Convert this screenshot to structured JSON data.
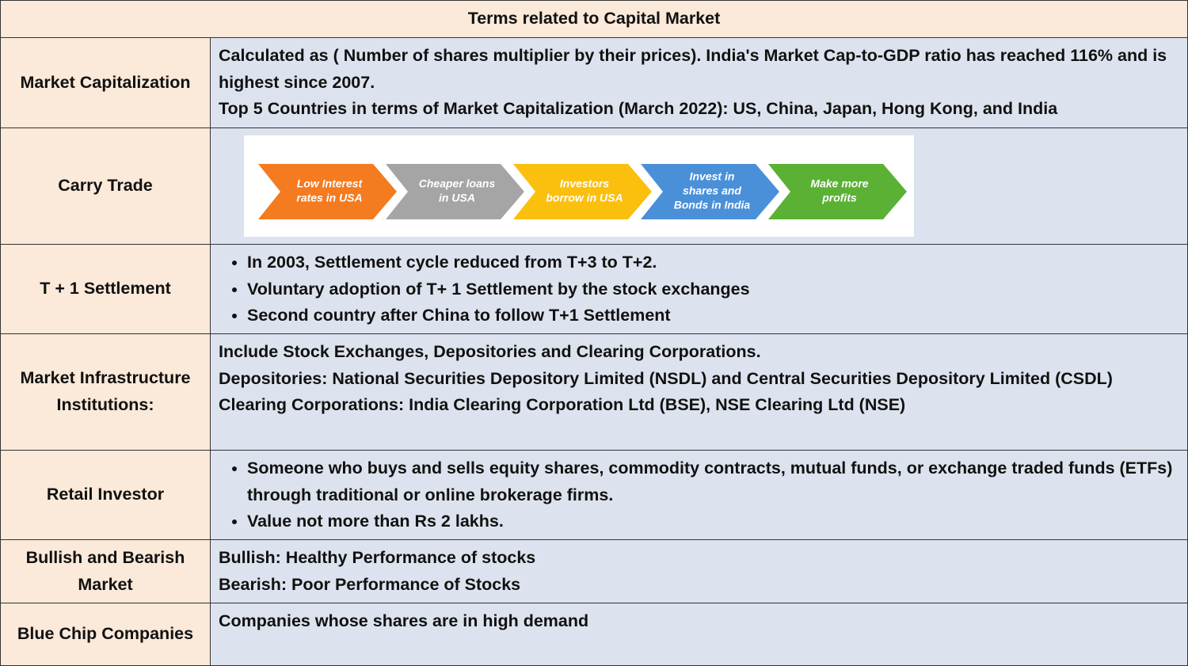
{
  "title": "Terms related to Capital Market",
  "rows": [
    {
      "term": "Market Capitalization",
      "lines": [
        "Calculated as ( Number of shares multiplier by their prices). India's Market Cap-to-GDP ratio has reached 116% and is highest since 2007.",
        "Top 5 Countries in terms of Market Capitalization (March 2022): US, China, Japan, Hong Kong, and India"
      ]
    },
    {
      "term": "Carry Trade",
      "steps": [
        [
          "Low Interest",
          "rates in USA"
        ],
        [
          "Cheaper loans",
          "in USA"
        ],
        [
          "Investors",
          "borrow in USA"
        ],
        [
          "Invest in",
          "shares and",
          "Bonds in India"
        ],
        [
          "Make more",
          "profits"
        ]
      ]
    },
    {
      "term": "T + 1 Settlement",
      "bullets": [
        "In 2003, Settlement cycle reduced from T+3 to T+2.",
        "Voluntary adoption of T+ 1 Settlement by the stock exchanges",
        "Second country after China to follow T+1 Settlement"
      ]
    },
    {
      "term": "Market Infrastructure Institutions:",
      "lines": [
        "Include Stock  Exchanges, Depositories and Clearing Corporations.",
        "Depositories: National Securities Depository Limited (NSDL) and Central Securities Depository Limited (CSDL)",
        "Clearing Corporations: India Clearing Corporation Ltd (BSE), NSE Clearing Ltd (NSE)"
      ]
    },
    {
      "term": "Retail Investor",
      "bullets": [
        "Someone who buys and sells equity shares, commodity contracts, mutual funds, or exchange traded funds (ETFs) through traditional or online brokerage firms.",
        "Value not more than Rs 2 lakhs."
      ]
    },
    {
      "term": "Bullish and Bearish Market",
      "lines": [
        "Bullish: Healthy Performance of stocks",
        "Bearish: Poor Performance of Stocks"
      ]
    },
    {
      "term": "Blue Chip Companies",
      "lines": [
        "Companies whose shares are in high demand"
      ]
    }
  ]
}
